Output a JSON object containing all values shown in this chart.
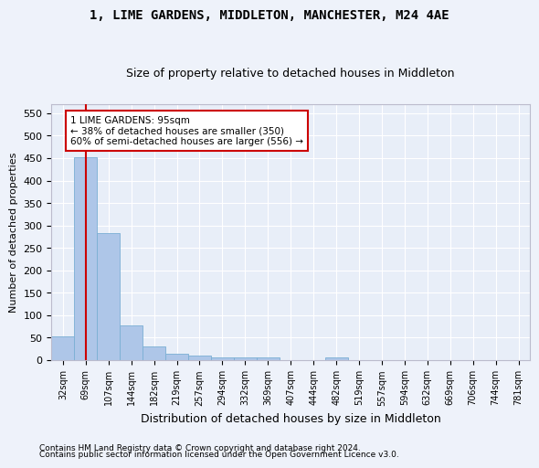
{
  "title": "1, LIME GARDENS, MIDDLETON, MANCHESTER, M24 4AE",
  "subtitle": "Size of property relative to detached houses in Middleton",
  "xlabel": "Distribution of detached houses by size in Middleton",
  "ylabel": "Number of detached properties",
  "bin_labels": [
    "32sqm",
    "69sqm",
    "107sqm",
    "144sqm",
    "182sqm",
    "219sqm",
    "257sqm",
    "294sqm",
    "332sqm",
    "369sqm",
    "407sqm",
    "444sqm",
    "482sqm",
    "519sqm",
    "557sqm",
    "594sqm",
    "632sqm",
    "669sqm",
    "706sqm",
    "744sqm",
    "781sqm"
  ],
  "bar_heights": [
    53,
    451,
    283,
    78,
    30,
    15,
    10,
    5,
    5,
    6,
    0,
    0,
    5,
    0,
    0,
    0,
    0,
    0,
    0,
    0,
    0
  ],
  "bar_color": "#aec6e8",
  "bar_edge_color": "#7aafd4",
  "property_name": "1 LIME GARDENS: 95sqm",
  "pct_smaller": 38,
  "n_smaller": 350,
  "pct_larger_semi": 60,
  "n_larger_semi": 556,
  "annotation_box_color": "#ffffff",
  "annotation_box_edge": "#cc0000",
  "vline_color": "#cc0000",
  "vline_x": 1.0,
  "ylim": [
    0,
    570
  ],
  "yticks": [
    0,
    50,
    100,
    150,
    200,
    250,
    300,
    350,
    400,
    450,
    500,
    550
  ],
  "bg_color": "#e8eef8",
  "grid_color": "#ffffff",
  "title_fontsize": 10,
  "subtitle_fontsize": 9,
  "footnote1": "Contains HM Land Registry data © Crown copyright and database right 2024.",
  "footnote2": "Contains public sector information licensed under the Open Government Licence v3.0."
}
